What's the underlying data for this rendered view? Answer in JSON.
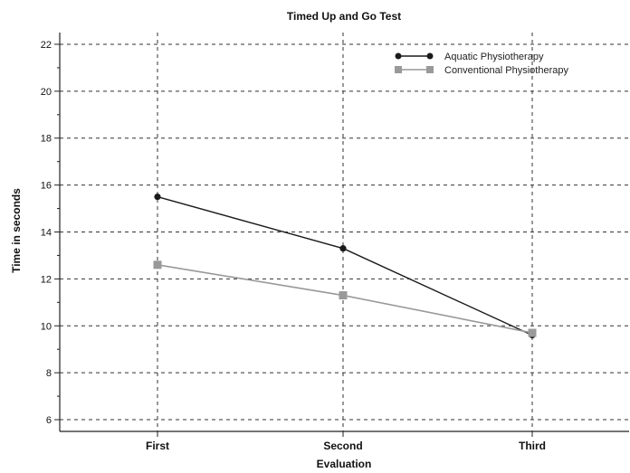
{
  "chart_data": {
    "type": "line",
    "title": "Timed Up and Go Test",
    "xlabel": "Evaluation",
    "ylabel": "Time in seconds",
    "categories": [
      "First",
      "Second",
      "Third"
    ],
    "ylim": [
      5.5,
      22.5
    ],
    "yticks": [
      6,
      8,
      10,
      12,
      14,
      16,
      18,
      20,
      22
    ],
    "grid": true,
    "legend_position": "top-right",
    "series": [
      {
        "name": "Aquatic Physiotherapy",
        "values": [
          15.5,
          13.3,
          9.6
        ],
        "color": "#1a1a1a",
        "marker": "circle"
      },
      {
        "name": "Conventional Physiotherapy",
        "values": [
          12.6,
          11.3,
          9.7
        ],
        "color": "#999999",
        "marker": "square"
      }
    ]
  }
}
